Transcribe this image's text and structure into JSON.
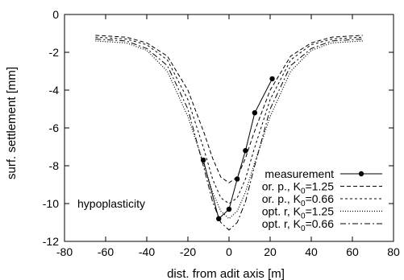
{
  "chart_data": {
    "type": "line",
    "title": "",
    "xlabel": "dist. from adit axis [m]",
    "ylabel": "surf. settlement [mm]",
    "xlim": [
      -80,
      80
    ],
    "ylim": [
      -12,
      0
    ],
    "xticks": [
      -80,
      -60,
      -40,
      -20,
      0,
      20,
      40,
      60,
      80
    ],
    "yticks": [
      0,
      -2,
      -4,
      -6,
      -8,
      -10,
      -12
    ],
    "grid": false,
    "legend_position": "bottom-right",
    "annotation": "hypoplasticity",
    "series": [
      {
        "name": "measurement",
        "style": "solid-dots",
        "x": [
          -12.5,
          -5,
          0,
          4,
          8,
          12.5,
          21
        ],
        "y": [
          -7.7,
          -10.8,
          -10.3,
          -8.7,
          -7.2,
          -5.2,
          -3.4
        ]
      },
      {
        "name": "or. p., K0=1.25",
        "legend_base": "or. p., K",
        "legend_sub": "0",
        "legend_rest": "=1.25",
        "style": "dashed",
        "x": [
          -65,
          -50,
          -40,
          -30,
          -20,
          -12,
          -8,
          -4,
          0,
          4,
          8,
          12,
          20,
          30,
          40,
          50,
          65
        ],
        "y": [
          -1.1,
          -1.2,
          -1.5,
          -2.2,
          -4.0,
          -6.3,
          -7.6,
          -8.6,
          -8.9,
          -8.6,
          -7.6,
          -6.3,
          -4.0,
          -2.2,
          -1.5,
          -1.2,
          -1.1
        ]
      },
      {
        "name": "or. p., K0=0.66",
        "legend_base": "or. p., K",
        "legend_sub": "0",
        "legend_rest": "=0.66",
        "style": "short-dashed",
        "x": [
          -65,
          -50,
          -40,
          -30,
          -20,
          -12,
          -8,
          -4,
          0,
          4,
          8,
          12,
          20,
          30,
          40,
          50,
          65
        ],
        "y": [
          -1.2,
          -1.3,
          -1.6,
          -2.4,
          -4.5,
          -7.2,
          -8.7,
          -9.7,
          -10.0,
          -9.7,
          -8.7,
          -7.2,
          -4.5,
          -2.4,
          -1.6,
          -1.3,
          -1.2
        ]
      },
      {
        "name": "opt. r, K0=1.25",
        "legend_base": "opt. r, K",
        "legend_sub": "0",
        "legend_rest": "=1.25",
        "style": "dotted",
        "x": [
          -65,
          -50,
          -40,
          -30,
          -20,
          -12,
          -8,
          -4,
          0,
          4,
          8,
          12,
          20,
          30,
          40,
          50,
          65
        ],
        "y": [
          -1.4,
          -1.5,
          -1.9,
          -3.0,
          -5.4,
          -8.0,
          -9.4,
          -10.4,
          -10.8,
          -10.4,
          -9.4,
          -8.0,
          -5.4,
          -3.0,
          -1.9,
          -1.5,
          -1.4
        ]
      },
      {
        "name": "opt. r, K0=0.66",
        "legend_base": "opt. r, K",
        "legend_sub": "0",
        "legend_rest": "=0.66",
        "style": "dash-dot",
        "x": [
          -65,
          -50,
          -40,
          -30,
          -20,
          -12,
          -8,
          -4,
          0,
          4,
          8,
          12,
          20,
          30,
          40,
          50,
          65
        ],
        "y": [
          -1.3,
          -1.4,
          -1.8,
          -2.7,
          -5.0,
          -8.2,
          -9.9,
          -11.0,
          -11.4,
          -11.0,
          -9.9,
          -8.2,
          -5.0,
          -2.7,
          -1.8,
          -1.4,
          -1.3
        ]
      }
    ]
  }
}
